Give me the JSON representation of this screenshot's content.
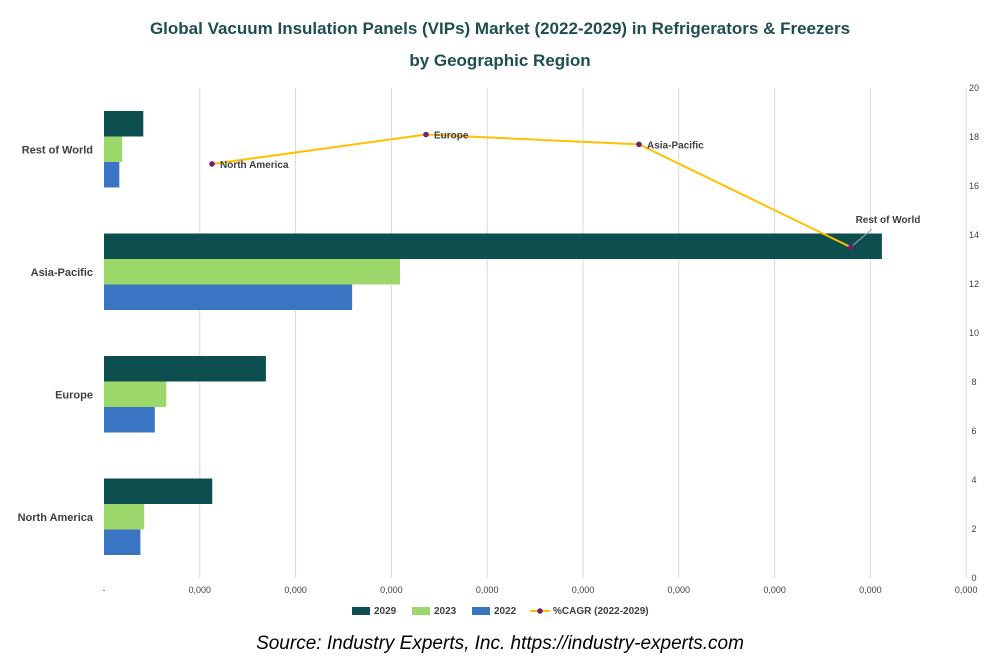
{
  "chart_data": {
    "type": "bar",
    "orientation": "horizontal",
    "title": "Global Vacuum Insulation Panels (VIPs) Market (2022-2029) in Refrigerators & Freezers",
    "subtitle": "by Geographic Region",
    "categories": [
      "North America",
      "Europe",
      "Asia-Pacific",
      "Rest of World"
    ],
    "series": [
      {
        "name": "2029",
        "type": "bar",
        "color": "#0d4f4f",
        "values": [
          1.13,
          1.69,
          8.12,
          0.41
        ]
      },
      {
        "name": "2023",
        "type": "bar",
        "color": "#9bd76a",
        "values": [
          0.42,
          0.65,
          3.09,
          0.19
        ]
      },
      {
        "name": "2022",
        "type": "bar",
        "color": "#3a75c4",
        "values": [
          0.38,
          0.53,
          2.59,
          0.16
        ]
      },
      {
        "name": "%CAGR (2022-2029)",
        "type": "line",
        "axis": "secondary",
        "color": "#ffc000",
        "marker_color": "#70206f",
        "values": [
          16.9,
          18.1,
          17.7,
          13.5
        ]
      }
    ],
    "x_axis": {
      "ticks": [
        "-",
        "0,000",
        "0,000",
        "0,000",
        "0,000",
        "0,000",
        "0,000",
        "0,000",
        "0,000",
        "0,000"
      ],
      "range": [
        0,
        9
      ]
    },
    "secondary_y_axis": {
      "range": [
        0,
        20
      ],
      "ticks": [
        "0",
        "2",
        "4",
        "6",
        "8",
        "10",
        "12",
        "14",
        "16",
        "18",
        "20"
      ]
    },
    "legend": {
      "position": "bottom"
    },
    "grid": true
  },
  "source": "Source: Industry Experts, Inc. https://industry-experts.com"
}
